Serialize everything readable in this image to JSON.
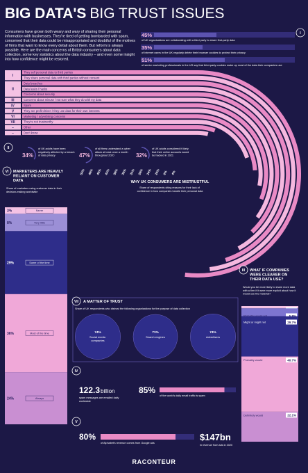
{
  "title_strong": "BIG DATA'S",
  "title_rest": "BIG TRUST ISSUES",
  "intro": "Consumers have grown both weary and wary of sharing their personal information with businesses. They're tired of getting bombarded with spam, concerned that their data could be misappropriated and doubtful of the motives of firms that want to know every detail about them. But reform is always possible. Here are the main concerns of British consumers about data collection, some key statistics about the data industry – and even some insight into how confidence might be restored.",
  "stats_top": {
    "section": "I",
    "values": [
      45,
      35,
      51
    ],
    "value_labels": [
      "45%",
      "35%",
      "51%"
    ],
    "texts": [
      "of UK organisations are collaborating with a third party to share first-party data",
      "of internet users in the UK regularly delete their browser cookies to protect their privacy",
      "of senior marketing professionals in the US say that third-party cookies make up most of the data their companies use"
    ],
    "color": "#5c53b0"
  },
  "stats_mid": {
    "section": "II",
    "values": [
      34,
      47,
      32
    ],
    "value_labels": [
      "34%",
      "47%",
      "32%"
    ],
    "texts": [
      "of UK adults have been negatively affected by a breach of data privacy",
      "of all firms understand a cyber attack at least once a month throughout 2020",
      "of UK adults considered it likely that their online accounts would be hacked in 2021"
    ]
  },
  "chart_data": [
    {
      "type": "arc",
      "title": "WHY UK CONSUMERS ARE MISTRUSTFUL",
      "subtitle": "Share of respondents citing reasons for their lack of confidence in how companies handle their personal data",
      "numerals": [
        "I",
        null,
        "II",
        null,
        null,
        "III",
        "IV",
        "V",
        "VI",
        "VII",
        "–",
        "–"
      ],
      "categories": [
        "They sell personal data to third parties",
        "They share personal data with third parties without consent",
        "Data breaches",
        "Data leaks / hacks",
        "Concerns about security",
        "Concerns about misuse / not sure what they do with my data",
        "Spam",
        "They are profit-driven / they use data for their own interests",
        "Marketing / advertising concerns",
        "They're not trustworthy",
        "Other",
        "Don't know"
      ],
      "values": [
        52,
        48,
        45,
        42,
        38,
        35,
        31,
        28,
        24,
        20,
        6,
        4
      ],
      "value_labels": [
        "52%",
        "48%",
        "45%",
        "42%",
        "38%",
        "35%",
        "31%",
        "28%",
        "24%",
        "20%",
        "6%",
        "4%"
      ],
      "colors": [
        "#e98ac5",
        "#f5b8df"
      ]
    },
    {
      "type": "stacked_bar",
      "section": "VI",
      "title": "MARKETERS ARE HEAVILY RELIANT ON CUSTOMER DATA",
      "subtitle": "Share of marketers using customer data in their decision-making worldwide",
      "categories": [
        "Never",
        "Very little",
        "Some of the time",
        "Most of the time",
        "Always"
      ],
      "values": [
        3,
        8,
        29,
        36,
        24
      ],
      "value_labels": [
        "3%",
        "8%",
        "29%",
        "36%",
        "24%"
      ],
      "colors": [
        "#f4c2e4",
        "#9b8fd6",
        "#2e2d8a",
        "#f0a8d8",
        "#c98fd2"
      ]
    },
    {
      "type": "stacked_bar",
      "section": "III",
      "title": "WHAT IF COMPANIES WERE CLEARER ON THEIR DATA USE?",
      "subtitle": "Would you be more likely to share more data with a firm if it were more explicit about how it would use the material?",
      "categories": [
        "Definitely would not",
        "Probably would not",
        "Might or might not",
        "Probably would",
        "Definitely would"
      ],
      "values": [
        1.7,
        5.8,
        29.7,
        40.7,
        22.1
      ],
      "value_labels": [
        "1.7%",
        "5.8%",
        "29.7%",
        "40.7%",
        "22.1%"
      ],
      "colors": [
        "#f4c2e4",
        "#7d75d0",
        "#2e2d8a",
        "#f0a8d8",
        "#c98fd2"
      ]
    },
    {
      "type": "bubble",
      "section": "VII",
      "title": "A MATTER OF TRUST",
      "subtitle": "Share of UK respondents who distrust the following organisations for the purpose of data collection",
      "categories": [
        "Social media companies",
        "Search engines",
        "Advertisers"
      ],
      "values": [
        74,
        71,
        74
      ],
      "value_labels": [
        "74%",
        "71%",
        "74%"
      ],
      "color": "#2e2d8a"
    }
  ],
  "spam": {
    "section": "IV",
    "count": 122.3,
    "unit": "billion",
    "count_text": "spam messages are emailed daily worldwide",
    "share": 85,
    "share_label": "85%",
    "share_text": "of the world's daily email traffic is spam"
  },
  "ads": {
    "section": "V",
    "share": 80,
    "share_label": "80%",
    "share_text": "of Alphabet's revenue comes from Google ads",
    "revenue": 147,
    "revenue_label": "$147bn",
    "revenue_text": "in revenue from ads in 2020"
  },
  "brand": "RACONTEUR"
}
